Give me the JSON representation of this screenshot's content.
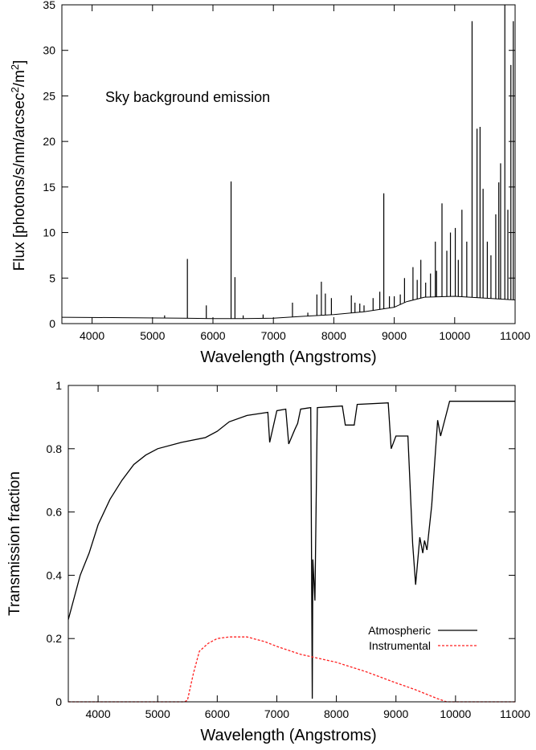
{
  "chart_data": [
    {
      "type": "line",
      "title": "",
      "annotation": "Sky background emission",
      "xlabel": "Wavelength (Angstroms)",
      "ylabel_main": "Flux [photons/s/nm/arcsec",
      "ylabel_sup1": "2",
      "ylabel_mid": "/m",
      "ylabel_sup2": "2",
      "ylabel_end": "]",
      "xlim": [
        3500,
        11000
      ],
      "ylim": [
        0,
        35
      ],
      "xticks": [
        4000,
        5000,
        6000,
        7000,
        8000,
        9000,
        10000,
        11000
      ],
      "xtick_labels": [
        "4000",
        "5000",
        "6000",
        "7000",
        "8000",
        "9000",
        "10000",
        "11000"
      ],
      "yticks": [
        0,
        5,
        10,
        15,
        20,
        25,
        30,
        35
      ],
      "ytick_labels": [
        "0",
        "5",
        "10",
        "15",
        "20",
        "25",
        "30",
        "35"
      ],
      "grid": false,
      "continuum": [
        [
          3500,
          0.7
        ],
        [
          4500,
          0.65
        ],
        [
          5500,
          0.6
        ],
        [
          6000,
          0.55
        ],
        [
          6500,
          0.55
        ],
        [
          7000,
          0.6
        ],
        [
          7500,
          0.8
        ],
        [
          8000,
          1.0
        ],
        [
          8500,
          1.3
        ],
        [
          9000,
          1.8
        ],
        [
          9200,
          2.4
        ],
        [
          9500,
          2.9
        ],
        [
          10000,
          3.0
        ],
        [
          10500,
          2.8
        ],
        [
          11000,
          2.6
        ]
      ],
      "emission_lines": [
        {
          "x": 5200,
          "y": 0.9
        },
        {
          "x": 5577,
          "y": 7.1
        },
        {
          "x": 5890,
          "y": 2.0
        },
        {
          "x": 6300,
          "y": 15.6
        },
        {
          "x": 6364,
          "y": 5.1
        },
        {
          "x": 6500,
          "y": 0.9
        },
        {
          "x": 6830,
          "y": 1.0
        },
        {
          "x": 7316,
          "y": 2.3
        },
        {
          "x": 7570,
          "y": 1.2
        },
        {
          "x": 7720,
          "y": 3.2
        },
        {
          "x": 7794,
          "y": 4.6
        },
        {
          "x": 7860,
          "y": 3.3
        },
        {
          "x": 7960,
          "y": 2.8
        },
        {
          "x": 8290,
          "y": 3.1
        },
        {
          "x": 8350,
          "y": 2.3
        },
        {
          "x": 8430,
          "y": 2.2
        },
        {
          "x": 8500,
          "y": 2.0
        },
        {
          "x": 8650,
          "y": 2.8
        },
        {
          "x": 8761,
          "y": 3.5
        },
        {
          "x": 8827,
          "y": 14.3
        },
        {
          "x": 8920,
          "y": 3.0
        },
        {
          "x": 9000,
          "y": 3.0
        },
        {
          "x": 9100,
          "y": 3.2
        },
        {
          "x": 9170,
          "y": 5.0
        },
        {
          "x": 9310,
          "y": 6.2
        },
        {
          "x": 9380,
          "y": 4.8
        },
        {
          "x": 9440,
          "y": 7.0
        },
        {
          "x": 9520,
          "y": 4.5
        },
        {
          "x": 9600,
          "y": 5.5
        },
        {
          "x": 9680,
          "y": 9.0
        },
        {
          "x": 9700,
          "y": 5.8
        },
        {
          "x": 9790,
          "y": 13.2
        },
        {
          "x": 9870,
          "y": 8.0
        },
        {
          "x": 9930,
          "y": 10.0
        },
        {
          "x": 10010,
          "y": 10.5
        },
        {
          "x": 10060,
          "y": 7.0
        },
        {
          "x": 10120,
          "y": 12.5
        },
        {
          "x": 10200,
          "y": 9.0
        },
        {
          "x": 10288,
          "y": 33.2
        },
        {
          "x": 10370,
          "y": 21.4
        },
        {
          "x": 10420,
          "y": 21.6
        },
        {
          "x": 10470,
          "y": 14.8
        },
        {
          "x": 10540,
          "y": 9.0
        },
        {
          "x": 10600,
          "y": 7.5
        },
        {
          "x": 10680,
          "y": 12.0
        },
        {
          "x": 10730,
          "y": 15.5
        },
        {
          "x": 10760,
          "y": 17.6
        },
        {
          "x": 10830,
          "y": 35.0
        },
        {
          "x": 10880,
          "y": 12.5
        },
        {
          "x": 10930,
          "y": 28.4
        },
        {
          "x": 10970,
          "y": 33.2
        }
      ]
    },
    {
      "type": "line",
      "title": "",
      "xlabel": "Wavelength (Angstroms)",
      "ylabel": "Transmission fraction",
      "xlim": [
        3500,
        11000
      ],
      "ylim": [
        0,
        1
      ],
      "xticks": [
        4000,
        5000,
        6000,
        7000,
        8000,
        9000,
        10000,
        11000
      ],
      "xtick_labels": [
        "4000",
        "5000",
        "6000",
        "7000",
        "8000",
        "9000",
        "10000",
        "11000"
      ],
      "yticks": [
        0,
        0.2,
        0.4,
        0.6,
        0.8,
        1
      ],
      "ytick_labels": [
        "0",
        "0.2",
        "0.4",
        "0.6",
        "0.8",
        "1"
      ],
      "grid": false,
      "legend_position": "bottom-right",
      "series": [
        {
          "name": "Atmospheric",
          "color": "#000000",
          "dash": "solid",
          "points": [
            [
              3500,
              0.26
            ],
            [
              3600,
              0.33
            ],
            [
              3700,
              0.4
            ],
            [
              3850,
              0.47
            ],
            [
              4000,
              0.56
            ],
            [
              4200,
              0.64
            ],
            [
              4400,
              0.7
            ],
            [
              4600,
              0.75
            ],
            [
              4800,
              0.78
            ],
            [
              5000,
              0.8
            ],
            [
              5400,
              0.82
            ],
            [
              5800,
              0.835
            ],
            [
              6000,
              0.855
            ],
            [
              6200,
              0.885
            ],
            [
              6500,
              0.905
            ],
            [
              6850,
              0.915
            ],
            [
              6880,
              0.82
            ],
            [
              7000,
              0.92
            ],
            [
              7150,
              0.925
            ],
            [
              7200,
              0.815
            ],
            [
              7300,
              0.86
            ],
            [
              7350,
              0.88
            ],
            [
              7400,
              0.925
            ],
            [
              7570,
              0.93
            ],
            [
              7595,
              0.01
            ],
            [
              7605,
              0.45
            ],
            [
              7640,
              0.32
            ],
            [
              7680,
              0.93
            ],
            [
              8100,
              0.935
            ],
            [
              8150,
              0.875
            ],
            [
              8300,
              0.875
            ],
            [
              8350,
              0.94
            ],
            [
              8870,
              0.945
            ],
            [
              8920,
              0.8
            ],
            [
              9000,
              0.84
            ],
            [
              9200,
              0.84
            ],
            [
              9280,
              0.5
            ],
            [
              9330,
              0.37
            ],
            [
              9400,
              0.52
            ],
            [
              9450,
              0.47
            ],
            [
              9480,
              0.51
            ],
            [
              9520,
              0.48
            ],
            [
              9600,
              0.62
            ],
            [
              9700,
              0.89
            ],
            [
              9750,
              0.84
            ],
            [
              9900,
              0.95
            ],
            [
              11000,
              0.95
            ]
          ]
        },
        {
          "name": "Instrumental",
          "color": "#ff2020",
          "dash": "dashed",
          "points": [
            [
              3500,
              0
            ],
            [
              5450,
              0
            ],
            [
              5500,
              0.005
            ],
            [
              5600,
              0.09
            ],
            [
              5700,
              0.16
            ],
            [
              5850,
              0.185
            ],
            [
              6000,
              0.2
            ],
            [
              6200,
              0.205
            ],
            [
              6500,
              0.205
            ],
            [
              6800,
              0.19
            ],
            [
              7000,
              0.175
            ],
            [
              7400,
              0.15
            ],
            [
              8000,
              0.125
            ],
            [
              8500,
              0.095
            ],
            [
              9000,
              0.06
            ],
            [
              9300,
              0.04
            ],
            [
              9500,
              0.025
            ],
            [
              9700,
              0.01
            ],
            [
              9850,
              0.0
            ],
            [
              11000,
              0.0
            ]
          ]
        }
      ]
    }
  ]
}
